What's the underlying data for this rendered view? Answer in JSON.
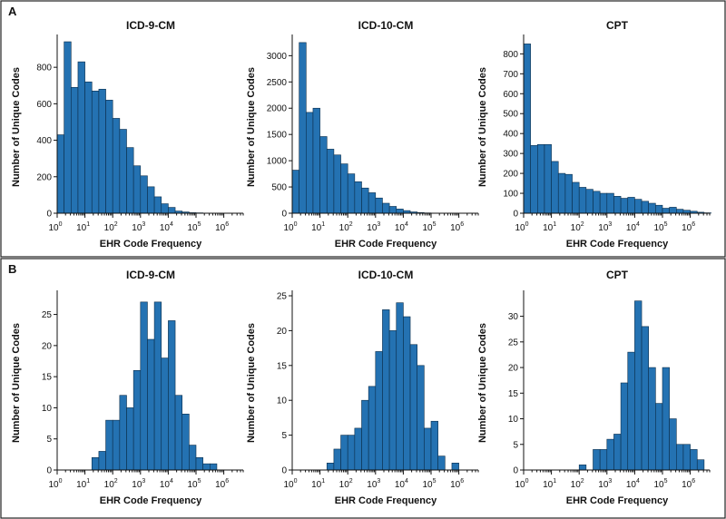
{
  "figure": {
    "colors": {
      "bar_fill": "#2472b2",
      "bar_edge": "#0b2d4a",
      "frame": "#222222"
    },
    "panels": [
      {
        "letter": "A"
      },
      {
        "letter": "B"
      }
    ]
  },
  "chart_data": [
    {
      "panel": "A",
      "type": "bar",
      "title": "ICD-9-CM",
      "xlabel": "EHR Code Frequency",
      "ylabel": "Number of Unique Codes",
      "x_scale": "log10",
      "x_bin_width_log10": 0.25,
      "x_start_log10": 0,
      "xticks": [
        {
          "base": "10",
          "exp": "0"
        },
        {
          "base": "10",
          "exp": "1"
        },
        {
          "base": "10",
          "exp": "2"
        },
        {
          "base": "10",
          "exp": "3"
        },
        {
          "base": "10",
          "exp": "4"
        },
        {
          "base": "10",
          "exp": "5"
        },
        {
          "base": "10",
          "exp": "6"
        }
      ],
      "ylim": [
        0,
        950
      ],
      "yticks": [
        0,
        200,
        400,
        600,
        800
      ],
      "values": [
        430,
        940,
        690,
        830,
        720,
        670,
        680,
        620,
        520,
        460,
        360,
        260,
        205,
        145,
        90,
        52,
        32,
        12,
        7,
        3,
        2,
        1,
        0,
        0,
        0,
        0,
        0,
        0
      ]
    },
    {
      "panel": "A",
      "type": "bar",
      "title": "ICD-10-CM",
      "xlabel": "EHR Code Frequency",
      "ylabel": "Number of Unique Codes",
      "x_scale": "log10",
      "x_bin_width_log10": 0.25,
      "x_start_log10": 0,
      "xticks": [
        {
          "base": "10",
          "exp": "0"
        },
        {
          "base": "10",
          "exp": "1"
        },
        {
          "base": "10",
          "exp": "2"
        },
        {
          "base": "10",
          "exp": "3"
        },
        {
          "base": "10",
          "exp": "4"
        },
        {
          "base": "10",
          "exp": "5"
        },
        {
          "base": "10",
          "exp": "6"
        }
      ],
      "ylim": [
        0,
        3300
      ],
      "yticks": [
        0,
        500,
        1000,
        1500,
        2000,
        2500,
        3000
      ],
      "values": [
        820,
        3250,
        1920,
        2000,
        1460,
        1220,
        1110,
        940,
        750,
        600,
        480,
        390,
        290,
        190,
        130,
        80,
        50,
        25,
        12,
        6,
        3,
        1,
        0,
        0,
        0,
        0,
        0,
        0
      ]
    },
    {
      "panel": "A",
      "type": "bar",
      "title": "CPT",
      "xlabel": "EHR Code Frequency",
      "ylabel": "Number of Unique Codes",
      "x_scale": "log10",
      "x_bin_width_log10": 0.25,
      "x_start_log10": 0,
      "xticks": [
        {
          "base": "10",
          "exp": "0"
        },
        {
          "base": "10",
          "exp": "1"
        },
        {
          "base": "10",
          "exp": "2"
        },
        {
          "base": "10",
          "exp": "3"
        },
        {
          "base": "10",
          "exp": "4"
        },
        {
          "base": "10",
          "exp": "5"
        },
        {
          "base": "10",
          "exp": "6"
        }
      ],
      "ylim": [
        0,
        870
      ],
      "yticks": [
        0,
        100,
        200,
        300,
        400,
        500,
        600,
        700,
        800
      ],
      "values": [
        850,
        340,
        345,
        345,
        260,
        200,
        195,
        155,
        130,
        120,
        110,
        100,
        100,
        85,
        75,
        80,
        70,
        60,
        50,
        40,
        25,
        30,
        20,
        15,
        10,
        5,
        2,
        0
      ]
    },
    {
      "panel": "B",
      "type": "bar",
      "title": "ICD-9-CM",
      "xlabel": "EHR Code Frequency",
      "ylabel": "Number of Unique Codes",
      "x_scale": "log10",
      "x_bin_width_log10": 0.25,
      "x_start_log10": 0,
      "xticks": [
        {
          "base": "10",
          "exp": "0"
        },
        {
          "base": "10",
          "exp": "1"
        },
        {
          "base": "10",
          "exp": "2"
        },
        {
          "base": "10",
          "exp": "3"
        },
        {
          "base": "10",
          "exp": "4"
        },
        {
          "base": "10",
          "exp": "5"
        },
        {
          "base": "10",
          "exp": "6"
        }
      ],
      "ylim": [
        0,
        28
      ],
      "yticks": [
        0,
        5,
        10,
        15,
        20,
        25
      ],
      "values": [
        0,
        0,
        0,
        0,
        0,
        2,
        3,
        8,
        8,
        12,
        10,
        16,
        27,
        21,
        27,
        18,
        24,
        12,
        9,
        4,
        2,
        1,
        1,
        0,
        0,
        0,
        0,
        0
      ]
    },
    {
      "panel": "B",
      "type": "bar",
      "title": "ICD-10-CM",
      "xlabel": "EHR Code Frequency",
      "ylabel": "Number of Unique Codes",
      "x_scale": "log10",
      "x_bin_width_log10": 0.25,
      "x_start_log10": 0,
      "xticks": [
        {
          "base": "10",
          "exp": "0"
        },
        {
          "base": "10",
          "exp": "1"
        },
        {
          "base": "10",
          "exp": "2"
        },
        {
          "base": "10",
          "exp": "3"
        },
        {
          "base": "10",
          "exp": "4"
        },
        {
          "base": "10",
          "exp": "5"
        },
        {
          "base": "10",
          "exp": "6"
        }
      ],
      "ylim": [
        0,
        25
      ],
      "yticks": [
        0,
        5,
        10,
        15,
        20,
        25
      ],
      "values": [
        0,
        0,
        0,
        0,
        0,
        1,
        3,
        5,
        5,
        6,
        10,
        12,
        17,
        23,
        20,
        24,
        22,
        18,
        15,
        6,
        7,
        2,
        0,
        1,
        0,
        0,
        0,
        0
      ]
    },
    {
      "panel": "B",
      "type": "bar",
      "title": "CPT",
      "xlabel": "EHR Code Frequency",
      "ylabel": "Number of Unique Codes",
      "x_scale": "log10",
      "x_bin_width_log10": 0.25,
      "x_start_log10": 0,
      "xticks": [
        {
          "base": "10",
          "exp": "0"
        },
        {
          "base": "10",
          "exp": "1"
        },
        {
          "base": "10",
          "exp": "2"
        },
        {
          "base": "10",
          "exp": "3"
        },
        {
          "base": "10",
          "exp": "4"
        },
        {
          "base": "10",
          "exp": "5"
        },
        {
          "base": "10",
          "exp": "6"
        }
      ],
      "ylim": [
        0,
        34
      ],
      "yticks": [
        0,
        5,
        10,
        15,
        20,
        25,
        30
      ],
      "values": [
        0,
        0,
        0,
        0,
        0,
        0,
        0,
        0,
        1,
        0,
        4,
        4,
        6,
        7,
        17,
        23,
        33,
        28,
        20,
        13,
        20,
        10,
        5,
        5,
        4,
        2,
        0,
        0
      ]
    }
  ]
}
